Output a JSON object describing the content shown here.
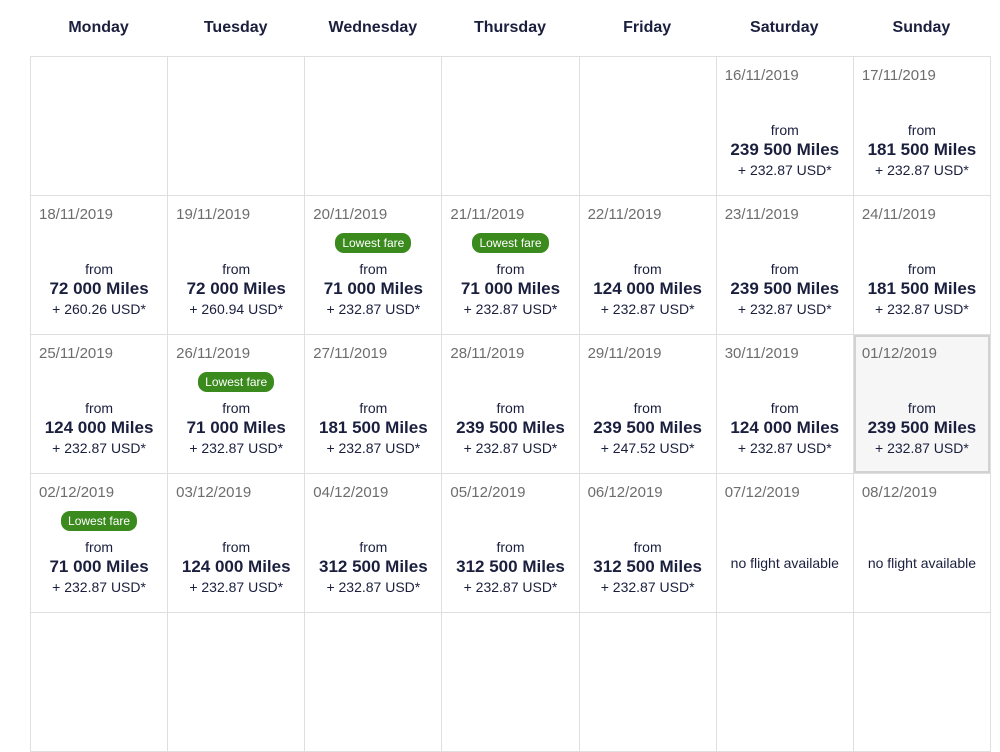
{
  "calendar": {
    "weekdays": [
      "Monday",
      "Tuesday",
      "Wednesday",
      "Thursday",
      "Friday",
      "Saturday",
      "Sunday"
    ],
    "labels": {
      "from": "from",
      "lowest_fare": "Lowest fare",
      "no_flight": "no flight available"
    },
    "days": [
      {
        "date": "",
        "empty": true
      },
      {
        "date": "",
        "empty": true
      },
      {
        "date": "",
        "empty": true
      },
      {
        "date": "",
        "empty": true
      },
      {
        "date": "",
        "empty": true
      },
      {
        "date": "16/11/2019",
        "miles": "239 500 Miles",
        "usd": "+ 232.87 USD*"
      },
      {
        "date": "17/11/2019",
        "miles": "181 500 Miles",
        "usd": "+ 232.87 USD*"
      },
      {
        "date": "18/11/2019",
        "miles": "72 000 Miles",
        "usd": "+ 260.26 USD*"
      },
      {
        "date": "19/11/2019",
        "miles": "72 000 Miles",
        "usd": "+ 260.94 USD*"
      },
      {
        "date": "20/11/2019",
        "lowest": true,
        "miles": "71 000 Miles",
        "usd": "+ 232.87 USD*"
      },
      {
        "date": "21/11/2019",
        "lowest": true,
        "miles": "71 000 Miles",
        "usd": "+ 232.87 USD*"
      },
      {
        "date": "22/11/2019",
        "miles": "124 000 Miles",
        "usd": "+ 232.87 USD*"
      },
      {
        "date": "23/11/2019",
        "miles": "239 500 Miles",
        "usd": "+ 232.87 USD*"
      },
      {
        "date": "24/11/2019",
        "miles": "181 500 Miles",
        "usd": "+ 232.87 USD*"
      },
      {
        "date": "25/11/2019",
        "miles": "124 000 Miles",
        "usd": "+ 232.87 USD*"
      },
      {
        "date": "26/11/2019",
        "lowest": true,
        "miles": "71 000 Miles",
        "usd": "+ 232.87 USD*"
      },
      {
        "date": "27/11/2019",
        "miles": "181 500 Miles",
        "usd": "+ 232.87 USD*"
      },
      {
        "date": "28/11/2019",
        "miles": "239 500 Miles",
        "usd": "+ 232.87 USD*"
      },
      {
        "date": "29/11/2019",
        "miles": "239 500 Miles",
        "usd": "+ 247.52 USD*"
      },
      {
        "date": "30/11/2019",
        "miles": "124 000 Miles",
        "usd": "+ 232.87 USD*"
      },
      {
        "date": "01/12/2019",
        "selected": true,
        "miles": "239 500 Miles",
        "usd": "+ 232.87 USD*"
      },
      {
        "date": "02/12/2019",
        "lowest": true,
        "miles": "71 000 Miles",
        "usd": "+ 232.87 USD*"
      },
      {
        "date": "03/12/2019",
        "miles": "124 000 Miles",
        "usd": "+ 232.87 USD*"
      },
      {
        "date": "04/12/2019",
        "miles": "312 500 Miles",
        "usd": "+ 232.87 USD*"
      },
      {
        "date": "05/12/2019",
        "miles": "312 500 Miles",
        "usd": "+ 232.87 USD*"
      },
      {
        "date": "06/12/2019",
        "miles": "312 500 Miles",
        "usd": "+ 232.87 USD*"
      },
      {
        "date": "07/12/2019",
        "noflight": true
      },
      {
        "date": "08/12/2019",
        "noflight": true
      },
      {
        "date": "",
        "empty": true
      },
      {
        "date": "",
        "empty": true
      },
      {
        "date": "",
        "empty": true
      },
      {
        "date": "",
        "empty": true
      },
      {
        "date": "",
        "empty": true
      },
      {
        "date": "",
        "empty": true
      },
      {
        "date": "",
        "empty": true
      }
    ]
  }
}
